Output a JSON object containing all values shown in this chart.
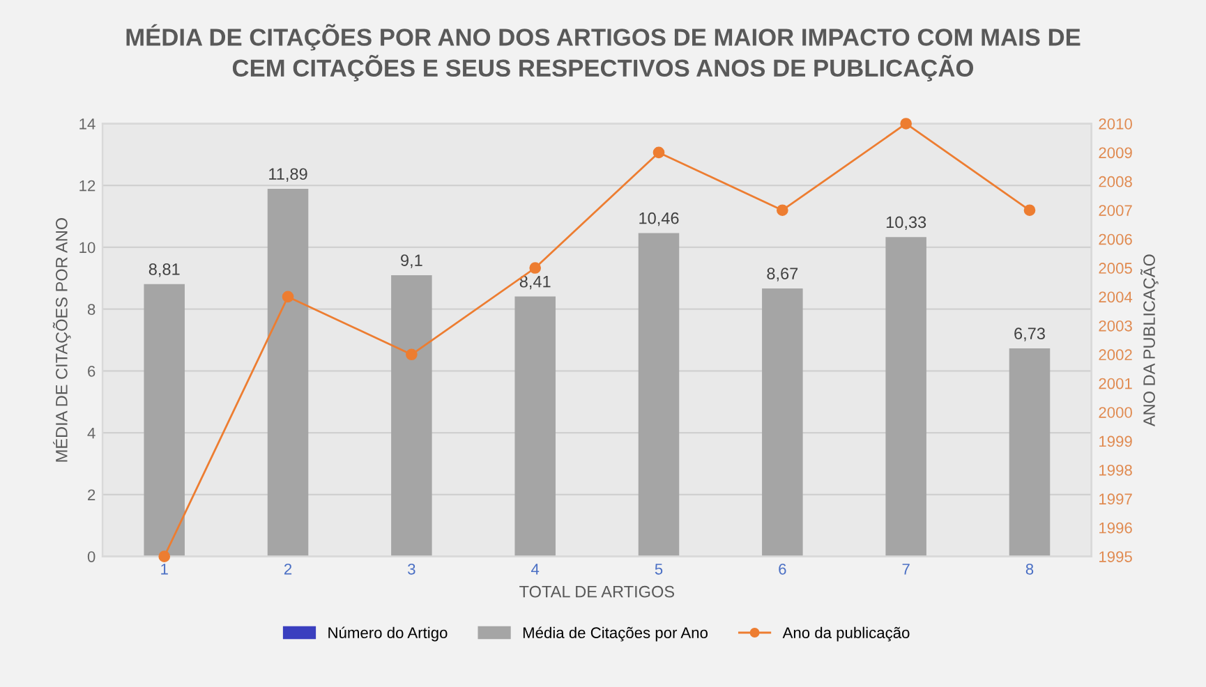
{
  "chart_data": {
    "type": "bar",
    "title": "MÉDIA DE CITAÇÕES POR ANO DOS ARTIGOS DE MAIOR IMPACTO COM MAIS DE\nCEM CITAÇÕES E SEUS RESPECTIVOS ANOS DE PUBLICAÇÃO",
    "xlabel": "TOTAL DE ARTIGOS",
    "ylabel": "MÉDIA DE CITAÇÕES POR ANO",
    "y2label": "ANO DA PUBLICAÇÃO",
    "categories": [
      "1",
      "2",
      "3",
      "4",
      "5",
      "6",
      "7",
      "8"
    ],
    "series": [
      {
        "name": "Número do Artigo",
        "color": "#3a3fbf",
        "values": [
          null,
          null,
          null,
          null,
          null,
          null,
          null,
          null
        ]
      },
      {
        "name": "Média de Citações por Ano",
        "color": "#a5a5a5",
        "values": [
          8.81,
          11.89,
          9.1,
          8.41,
          10.46,
          8.67,
          10.33,
          6.73
        ],
        "value_labels": [
          "8,81",
          "11,89",
          "9,1",
          "8,41",
          "10,46",
          "8,67",
          "10,33",
          "6,73"
        ]
      },
      {
        "name": "Ano da publicação",
        "type": "line",
        "axis": "y2",
        "color": "#ed7d31",
        "marker": "circle",
        "values": [
          1995,
          2004,
          2002,
          2005,
          2009,
          2007,
          2010,
          2007
        ]
      }
    ],
    "ylim": [
      0,
      14
    ],
    "yticks": [
      0,
      2,
      4,
      6,
      8,
      10,
      12,
      14
    ],
    "y2lim": [
      1995,
      2010
    ],
    "y2ticks": [
      1995,
      1996,
      1997,
      1998,
      1999,
      2000,
      2001,
      2002,
      2003,
      2004,
      2005,
      2006,
      2007,
      2008,
      2009,
      2010
    ],
    "grid": "y",
    "legend": "bottom"
  }
}
